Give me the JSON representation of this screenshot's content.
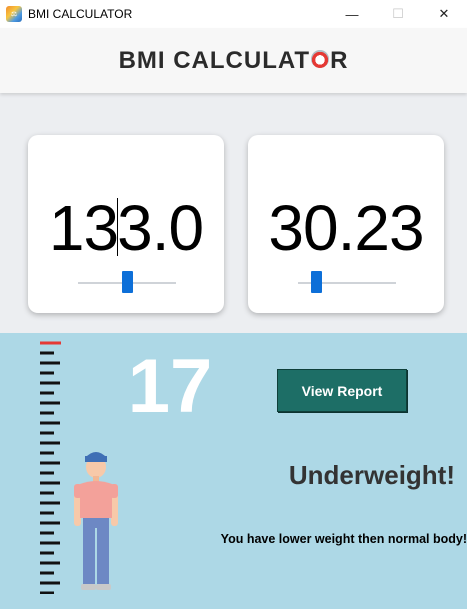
{
  "window": {
    "title": "BMI CALCULATOR",
    "controls": {
      "minimize": "—",
      "maximize": "☐",
      "close": "✕"
    }
  },
  "header": {
    "title_part1": "BMI CALCULAT",
    "title_part2": "R"
  },
  "inputs": {
    "height": {
      "value_before_caret": "13",
      "value_after_caret": "3.0",
      "slider_level": 0.5
    },
    "weight": {
      "value": "30.23",
      "slider_level": 0.15
    }
  },
  "result": {
    "bmi": "17",
    "report_button": "View Report",
    "status": "Underweight!",
    "message": "You have lower weight then normal body!"
  },
  "colors": {
    "accent_blue": "#0d6fd8",
    "panel_bg": "#add8e6",
    "report_button_bg": "#1d6e66",
    "ruler_top_mark": "#e53935"
  },
  "icons": {
    "app": "bmi-app-icon",
    "header_logo": "scale-logo-icon",
    "ruler": "height-ruler-icon",
    "person": "person-figure-icon"
  }
}
